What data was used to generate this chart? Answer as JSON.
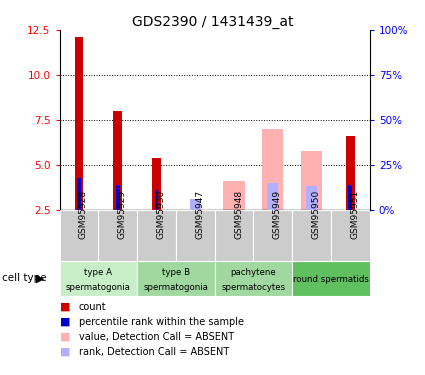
{
  "title": "GDS2390 / 1431439_at",
  "samples": [
    "GSM95928",
    "GSM95929",
    "GSM95930",
    "GSM95947",
    "GSM95948",
    "GSM95949",
    "GSM95950",
    "GSM95951"
  ],
  "count_values": [
    12.1,
    8.0,
    5.4,
    null,
    null,
    null,
    null,
    6.6
  ],
  "percentile_values": [
    4.3,
    3.9,
    3.6,
    null,
    null,
    null,
    null,
    3.9
  ],
  "absent_value_values": [
    null,
    null,
    null,
    2.5,
    4.1,
    7.0,
    5.8,
    null
  ],
  "absent_rank_values": [
    null,
    null,
    null,
    3.1,
    null,
    4.0,
    3.85,
    null
  ],
  "groups": [
    {
      "label": "type A\nspermatogonia",
      "start": 0,
      "end": 2,
      "color": "#c8eec8"
    },
    {
      "label": "type B\nspermatogonia",
      "start": 2,
      "end": 4,
      "color": "#a0d8a0"
    },
    {
      "label": "pachytene\nspermatocytes",
      "start": 4,
      "end": 6,
      "color": "#a0d8a0"
    },
    {
      "label": "round spermatids",
      "start": 6,
      "end": 8,
      "color": "#60c060"
    }
  ],
  "ylim_left": [
    2.5,
    12.5
  ],
  "ylim_right": [
    0,
    100
  ],
  "yticks_left": [
    2.5,
    5.0,
    7.5,
    10.0,
    12.5
  ],
  "yticks_right": [
    0,
    25,
    50,
    75,
    100
  ],
  "ytick_labels_right": [
    "0%",
    "25%",
    "50%",
    "75%",
    "100%"
  ],
  "count_color": "#cc0000",
  "percentile_color": "#0000cc",
  "absent_value_color": "#ffb0b0",
  "absent_rank_color": "#b0b0ff",
  "bg_color": "#ffffff",
  "sample_bg": "#cccccc",
  "legend_items": [
    {
      "color": "#cc0000",
      "label": "count"
    },
    {
      "color": "#0000cc",
      "label": "percentile rank within the sample"
    },
    {
      "color": "#ffb0b0",
      "label": "value, Detection Call = ABSENT"
    },
    {
      "color": "#b0b0ff",
      "label": "rank, Detection Call = ABSENT"
    }
  ]
}
